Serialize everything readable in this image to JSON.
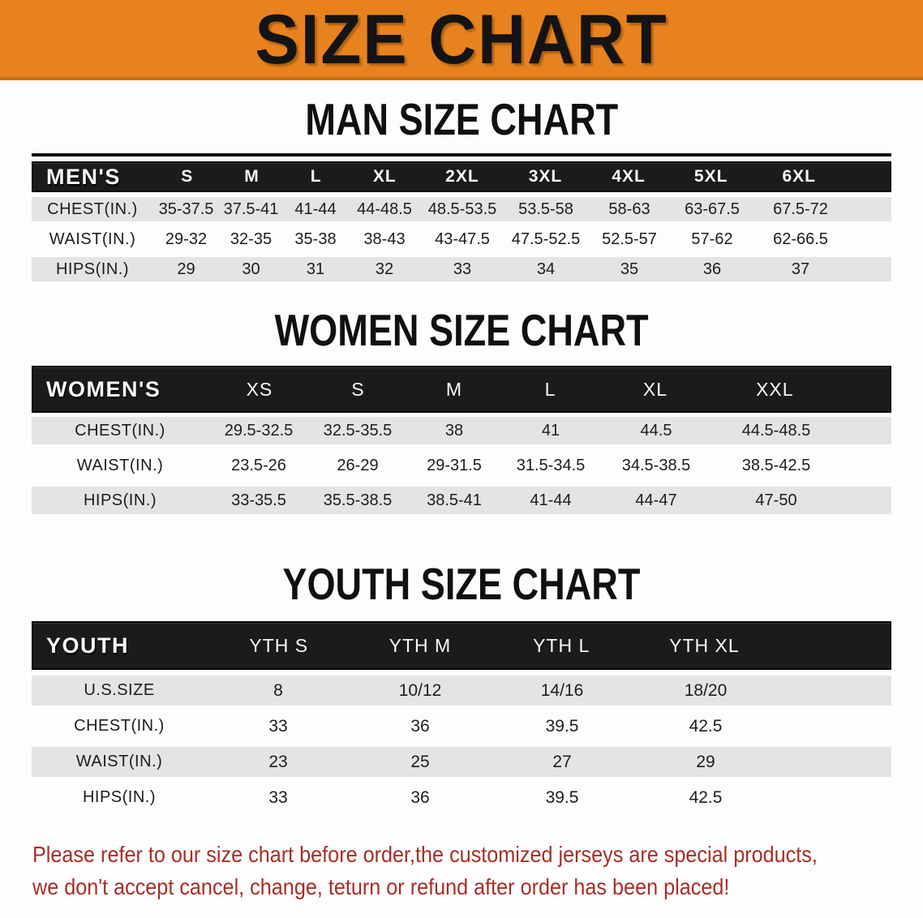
{
  "banner": {
    "title": "SIZE CHART"
  },
  "sections": [
    {
      "heading": "MAN SIZE CHART",
      "table": {
        "corner_label": "MEN'S",
        "columns": [
          "S",
          "M",
          "L",
          "XL",
          "2XL",
          "3XL",
          "4XL",
          "5XL",
          "6XL"
        ],
        "rows": [
          {
            "label": "CHEST(IN.)",
            "values": [
              "35-37.5",
              "37.5-41",
              "41-44",
              "44-48.5",
              "48.5-53.5",
              "53.5-58",
              "58-63",
              "63-67.5",
              "67.5-72"
            ]
          },
          {
            "label": "WAIST(IN.)",
            "values": [
              "29-32",
              "32-35",
              "35-38",
              "38-43",
              "43-47.5",
              "47.5-52.5",
              "52.5-57",
              "57-62",
              "62-66.5"
            ]
          },
          {
            "label": "HIPS(IN.)",
            "values": [
              "29",
              "30",
              "31",
              "32",
              "33",
              "34",
              "35",
              "36",
              "37"
            ]
          }
        ]
      }
    },
    {
      "heading": "WOMEN SIZE CHART",
      "table": {
        "corner_label": "WOMEN'S",
        "columns": [
          "XS",
          "S",
          "M",
          "L",
          "XL",
          "XXL"
        ],
        "rows": [
          {
            "label": "CHEST(IN.)",
            "values": [
              "29.5-32.5",
              "32.5-35.5",
              "38",
              "41",
              "44.5",
              "44.5-48.5"
            ]
          },
          {
            "label": "WAIST(IN.)",
            "values": [
              "23.5-26",
              "26-29",
              "29-31.5",
              "31.5-34.5",
              "34.5-38.5",
              "38.5-42.5"
            ]
          },
          {
            "label": "HIPS(IN.)",
            "values": [
              "33-35.5",
              "35.5-38.5",
              "38.5-41",
              "41-44",
              "44-47",
              "47-50"
            ]
          }
        ]
      }
    },
    {
      "heading": "YOUTH SIZE CHART",
      "table": {
        "corner_label": "YOUTH",
        "columns": [
          "YTH S",
          "YTH M",
          "YTH L",
          "YTH XL"
        ],
        "rows": [
          {
            "label": "U.S.SIZE",
            "values": [
              "8",
              "10/12",
              "14/16",
              "18/20"
            ]
          },
          {
            "label": "CHEST(IN.)",
            "values": [
              "33",
              "36",
              "39.5",
              "42.5"
            ]
          },
          {
            "label": "WAIST(IN.)",
            "values": [
              "23",
              "25",
              "27",
              "29"
            ]
          },
          {
            "label": "HIPS(IN.)",
            "values": [
              "33",
              "36",
              "39.5",
              "42.5"
            ]
          }
        ]
      }
    }
  ],
  "footer": {
    "line1": "Please refer to our size chart before order,the customized jerseys are special products,",
    "line2": "we don't accept cancel, change, teturn or refund after order has been placed!"
  },
  "colors": {
    "banner_orange": "#E8821E",
    "banner_edge": "#C9700F",
    "header_black": "#1B1B1B",
    "row_gray": "#E4E4E4",
    "footer_red": "#A62F28",
    "title_black": "#141414"
  }
}
